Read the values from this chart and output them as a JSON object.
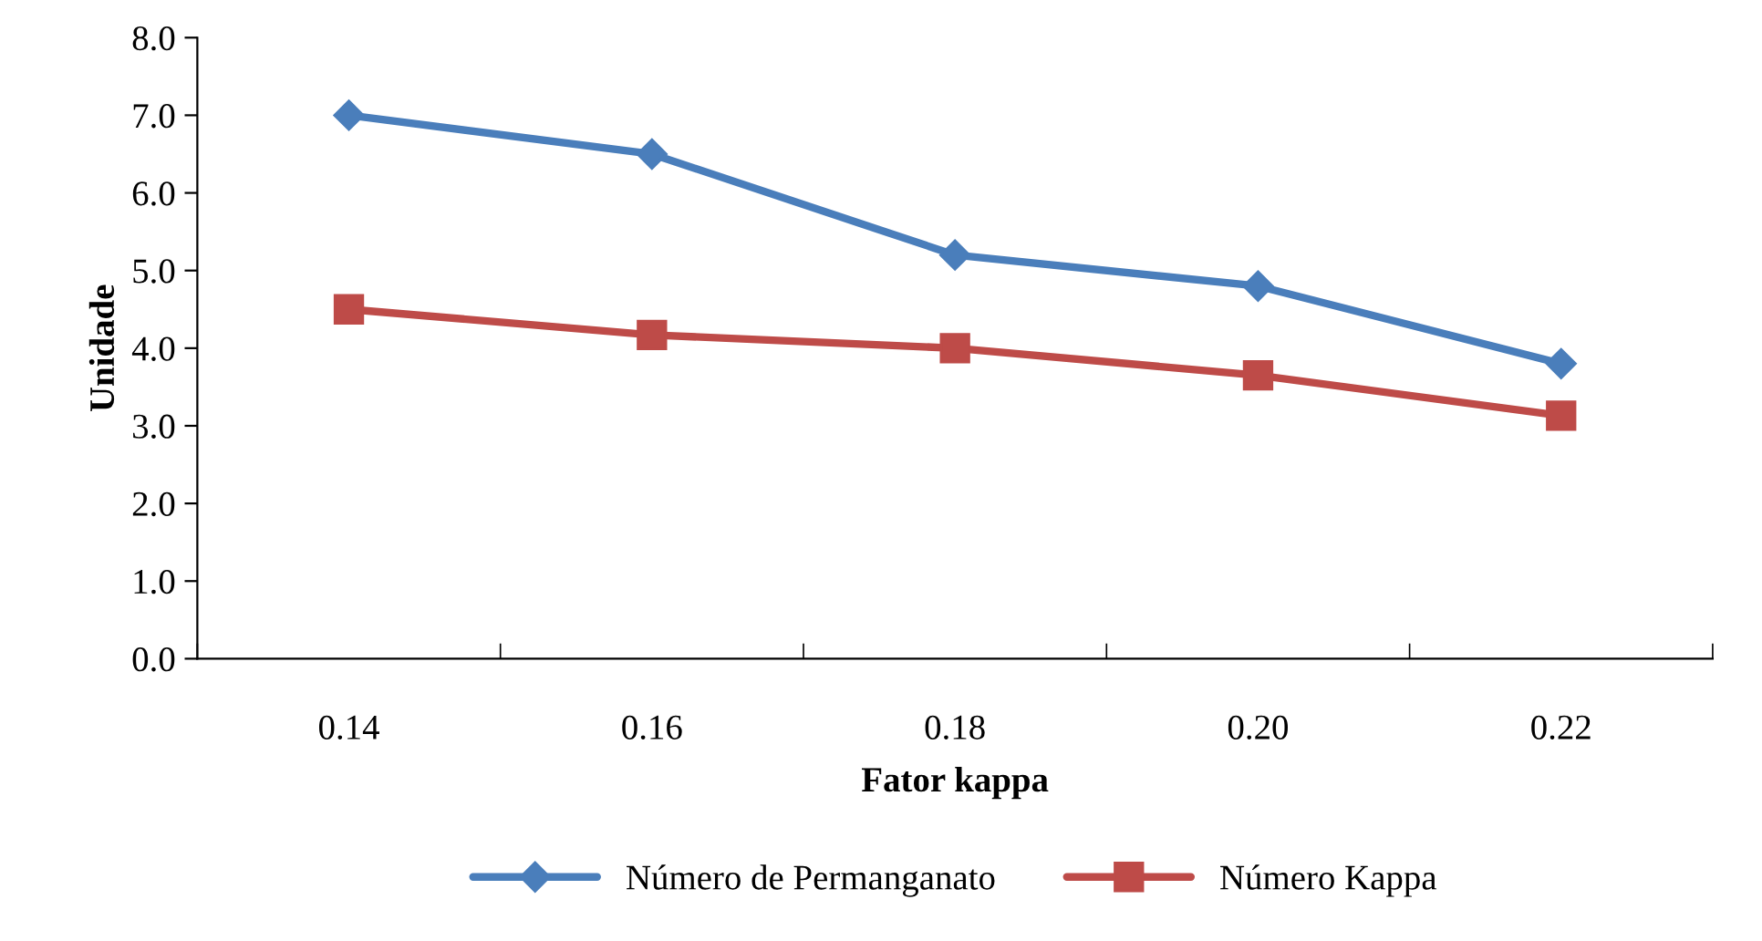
{
  "chart_data": {
    "type": "line",
    "xlabel": "Fator kappa",
    "ylabel": "Unidade",
    "categories": [
      "0.14",
      "0.16",
      "0.18",
      "0.20",
      "0.22"
    ],
    "series": [
      {
        "name": "Número de Permanganato",
        "color": "#4a7ebb",
        "marker": "diamond",
        "values": [
          7.0,
          6.5,
          5.2,
          4.8,
          3.8
        ]
      },
      {
        "name": "Número Kappa",
        "color": "#be4b48",
        "marker": "square",
        "values": [
          4.5,
          4.17,
          4.0,
          3.65,
          3.13
        ]
      }
    ],
    "ylim": [
      0,
      8
    ],
    "yticks": [
      {
        "value": 0,
        "label": "0.0"
      },
      {
        "value": 1,
        "label": "1.0"
      },
      {
        "value": 2,
        "label": "2.0"
      },
      {
        "value": 3,
        "label": "3.0"
      },
      {
        "value": 4,
        "label": "4.0"
      },
      {
        "value": 5,
        "label": "5.0"
      },
      {
        "value": 6,
        "label": "6.0"
      },
      {
        "value": 7,
        "label": "7.0"
      },
      {
        "value": 8,
        "label": "8.0"
      }
    ],
    "grid": false,
    "legend": "bottom",
    "line_style": "solid"
  }
}
